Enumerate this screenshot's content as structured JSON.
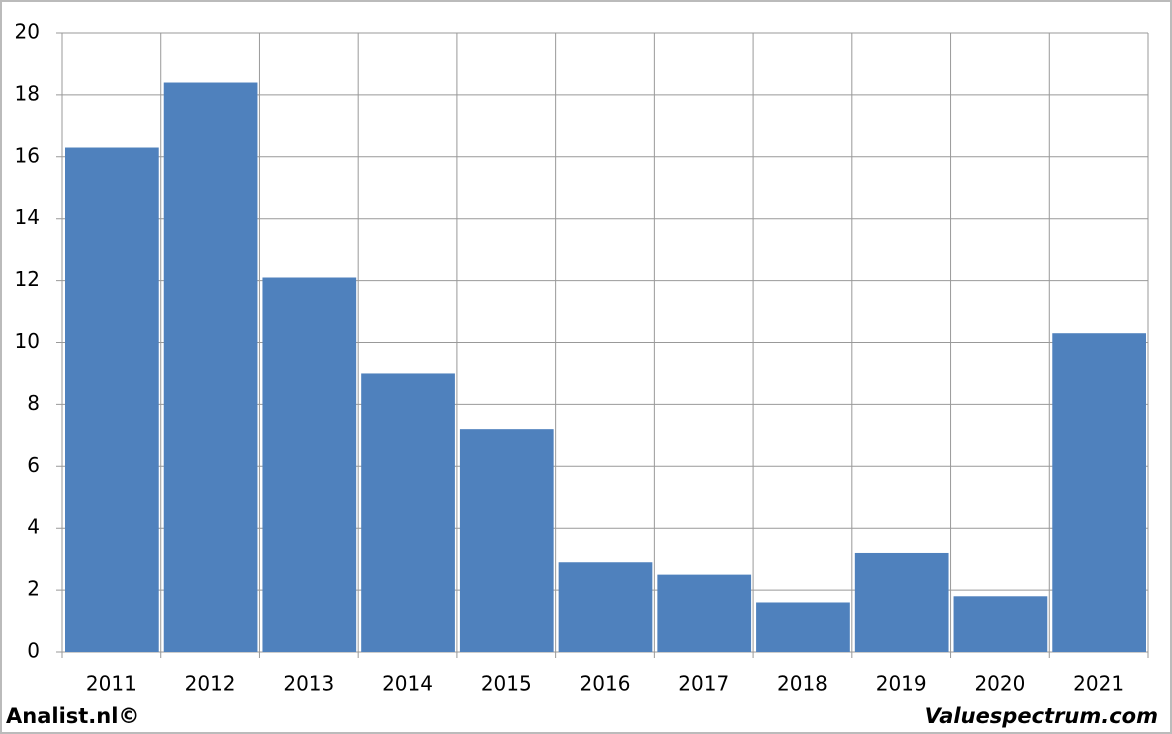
{
  "chart_data": {
    "type": "bar",
    "categories": [
      "2011",
      "2012",
      "2013",
      "2014",
      "2015",
      "2016",
      "2017",
      "2018",
      "2019",
      "2020",
      "2021"
    ],
    "values": [
      16.3,
      18.4,
      12.1,
      9.0,
      7.2,
      2.9,
      2.5,
      1.6,
      3.2,
      1.8,
      10.3
    ],
    "color": "#4f81bd",
    "ylim": [
      0,
      20
    ],
    "yticks": [
      0,
      2,
      4,
      6,
      8,
      10,
      12,
      14,
      16,
      18,
      20
    ],
    "grid": true,
    "footer_left": "Analist.nl©",
    "footer_right": "Valuespectrum.com"
  }
}
